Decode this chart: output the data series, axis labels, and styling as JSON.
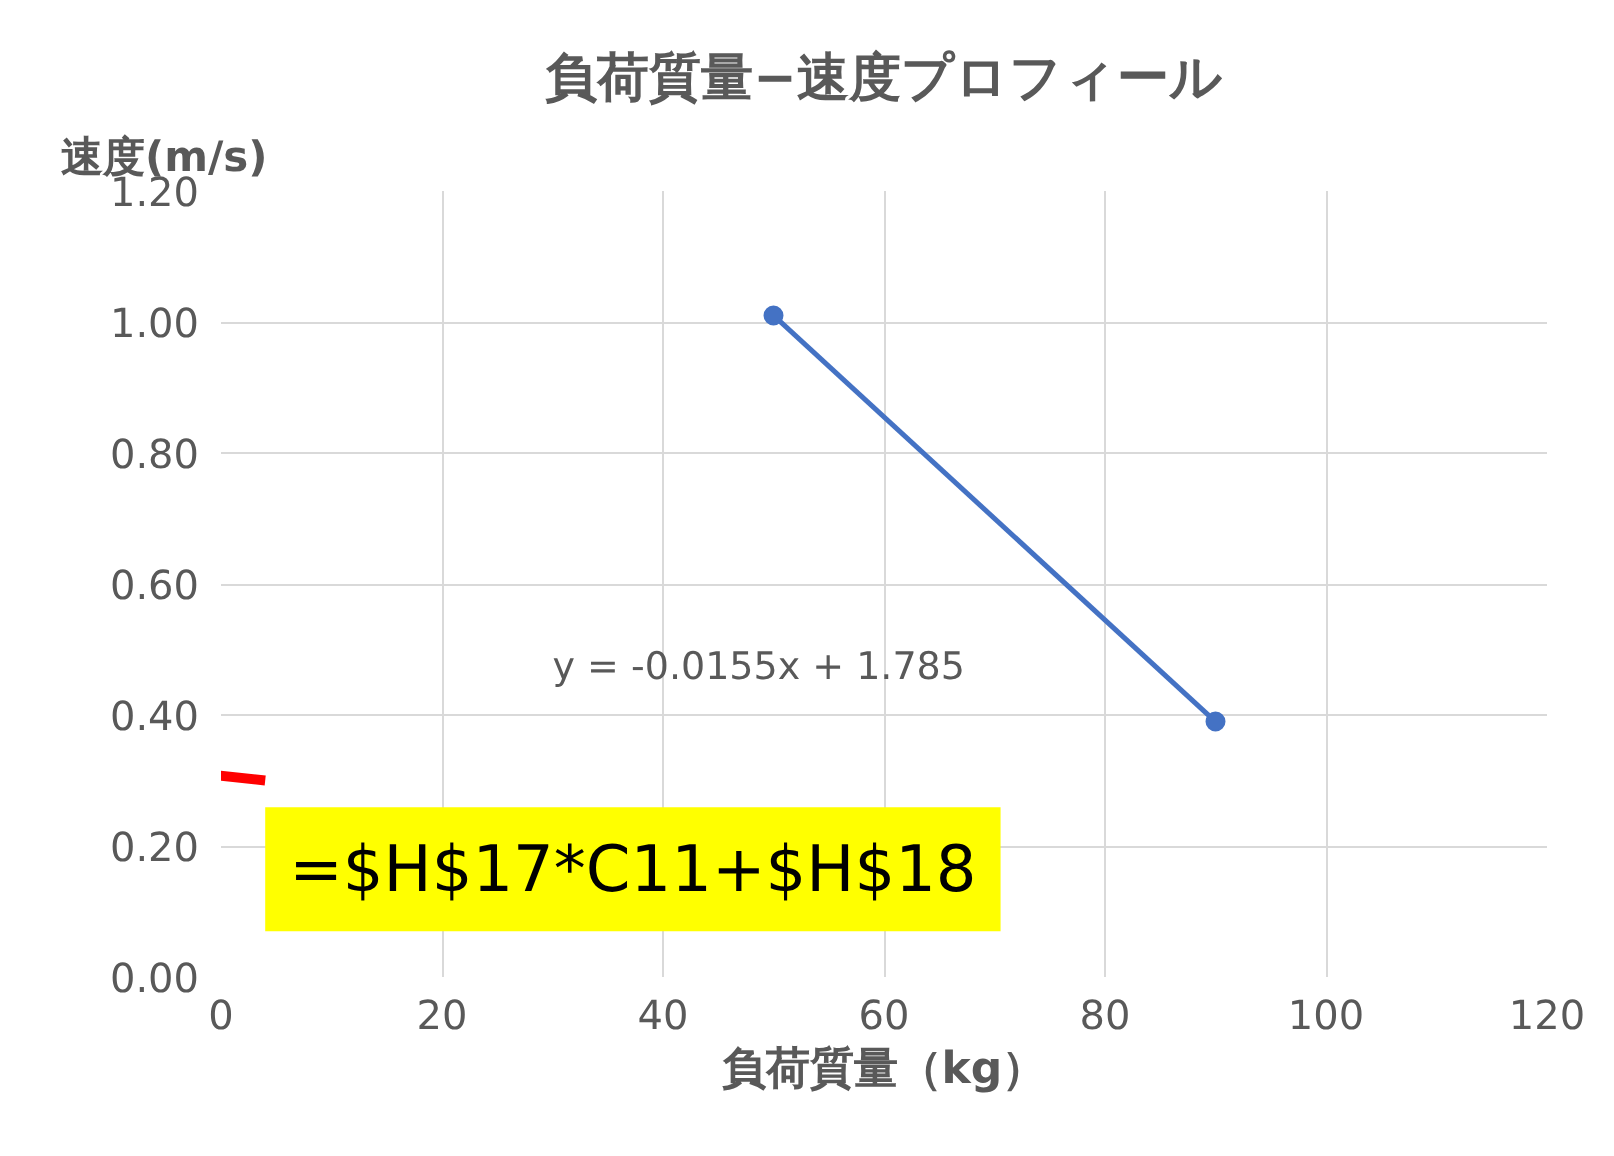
{
  "chart_data": {
    "type": "line",
    "title": "負荷質量−速度プロフィール",
    "xlabel": "負荷質量（kg）",
    "ylabel": "速度(m/s)",
    "x": [
      50,
      90
    ],
    "series": [
      {
        "color": "#4472c4",
        "values": [
          1.01,
          0.39
        ]
      }
    ],
    "xlim": [
      0,
      120
    ],
    "xticks": [
      0,
      20,
      40,
      60,
      80,
      100,
      120
    ],
    "ylim": [
      0,
      1.2
    ],
    "yticks": [
      {
        "value": 0,
        "label": "0.00"
      },
      {
        "value": 0.2,
        "label": "0.20"
      },
      {
        "value": 0.4,
        "label": "0.40"
      },
      {
        "value": 0.6,
        "label": "0.60"
      },
      {
        "value": 0.8,
        "label": "0.80"
      },
      {
        "value": 1.0,
        "label": "1.00"
      },
      {
        "value": 1.2,
        "label": "1.20"
      }
    ],
    "grid": true,
    "marker": "circle",
    "line_style": "solid",
    "annotations": [
      "y = -0.0155x + 1.785",
      "=$H$17*C11+$H$18"
    ]
  }
}
